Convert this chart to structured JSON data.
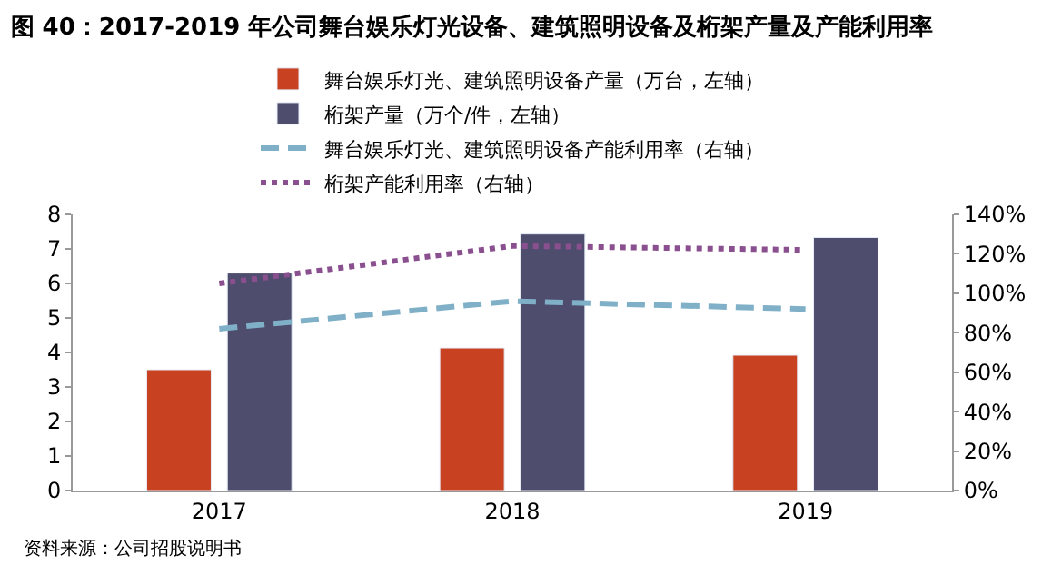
{
  "chart_data": {
    "type": "bar",
    "title": "图 40：2017-2019 年公司舞台娱乐灯光设备、建筑照明设备及桁架产量及产能利用率",
    "annotations": [
      "资料来源：公司招股说明书"
    ],
    "categories": [
      "2017",
      "2018",
      "2019"
    ],
    "series": [
      {
        "name": "舞台娱乐灯光、建筑照明设备产量（万台，左轴）",
        "color": "#c84120",
        "values": [
          3.5,
          4.13,
          3.92
        ]
      },
      {
        "name": "桁架产量（万个/件，左轴）",
        "color": "#4f4d6e",
        "values": [
          6.3,
          7.43,
          7.33
        ]
      },
      {
        "name": "舞台娱乐灯光、建筑照明设备产能利用率（右轴）",
        "type": "line",
        "axis": "y2",
        "line_style": "dashed",
        "color": "#7fb0c8",
        "values": [
          82,
          96,
          92
        ]
      },
      {
        "name": "桁架产能利用率（右轴）",
        "type": "line",
        "axis": "y2",
        "line_style": "dotted",
        "color": "#8a4f8e",
        "values": [
          105,
          124,
          122
        ]
      }
    ],
    "ylim": [
      0,
      8
    ],
    "yticks": [
      0,
      1,
      2,
      3,
      4,
      5,
      6,
      7,
      8
    ],
    "y2lim": [
      0,
      140
    ],
    "y2ticks": [
      {
        "value": 0,
        "label": "0%"
      },
      {
        "value": 20,
        "label": "20%"
      },
      {
        "value": 40,
        "label": "40%"
      },
      {
        "value": 60,
        "label": "60%"
      },
      {
        "value": 80,
        "label": "80%"
      },
      {
        "value": 100,
        "label": "100%"
      },
      {
        "value": 120,
        "label": "120%"
      },
      {
        "value": 140,
        "label": "140%"
      }
    ],
    "legend": "top"
  }
}
